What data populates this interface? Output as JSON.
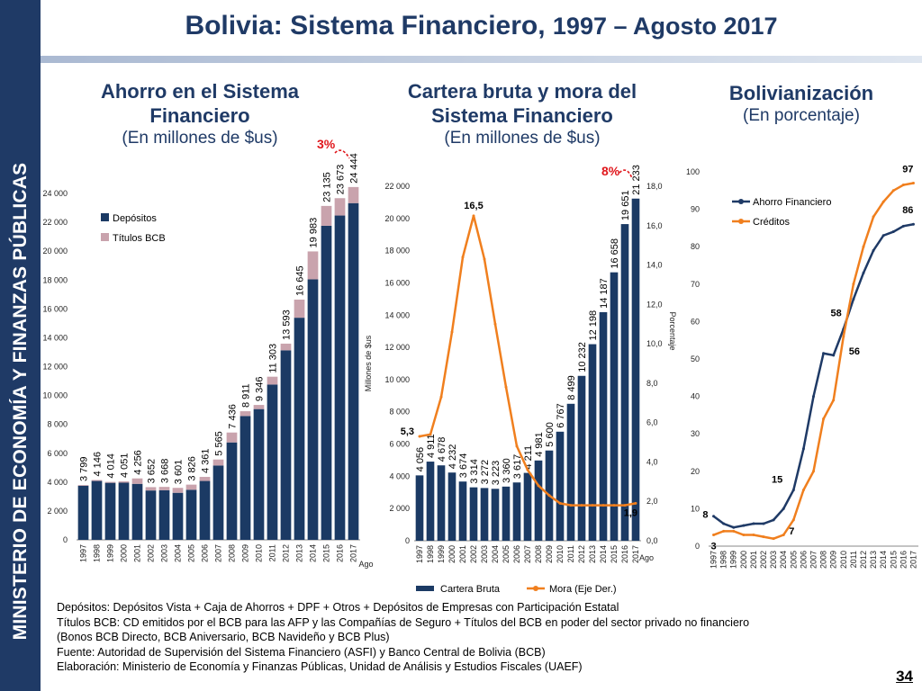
{
  "sidebar": {
    "text": "MINISTERIO DE ECONOMÍA Y FINANZAS PÚBLICAS"
  },
  "title": {
    "main": "Bolivia: Sistema Financiero, ",
    "years": "1997 – Agosto 2017"
  },
  "panels": [
    {
      "title": "Ahorro en el Sistema Financiero",
      "subtitle": "(En millones de $us)"
    },
    {
      "title": "Cartera bruta y mora del Sistema Financiero",
      "subtitle": "(En millones de $us)"
    },
    {
      "title": "Bolivianización",
      "subtitle": "(En porcentaje)"
    }
  ],
  "notes": [
    "Depósitos: Depósitos Vista + Caja de  Ahorros + DPF + Otros + Depósitos de Empresas con Participación Estatal",
    "Títulos BCB: CD emitidos por el BCB para las AFP y las Compañías de Seguro + Títulos del BCB en poder del sector privado no financiero",
    "(Bonos BCB Directo, BCB Aniversario, BCB Navideño y BCB Plus)",
    "Fuente: Autoridad de Supervisión del Sistema Financiero (ASFI) y Banco Central de Bolivia (BCB)",
    "Elaboración: Ministerio de Economía y Finanzas Públicas, Unidad de Análisis y Estudios Fiscales (UAEF)"
  ],
  "page_number": "34",
  "colors": {
    "navy": "#1f3a66",
    "bar": "#1b3a64",
    "titulos": "#c9a3ad",
    "orange": "#f07f1e",
    "red": "#e0161b"
  },
  "chart_data": [
    {
      "type": "bar",
      "stacked": true,
      "categories": [
        "1997",
        "1998",
        "1999",
        "2000",
        "2001",
        "2002",
        "2003",
        "2004",
        "2005",
        "2006",
        "2007",
        "2008",
        "2009",
        "2010",
        "2011",
        "2012",
        "2013",
        "2014",
        "2015",
        "2016",
        "2017"
      ],
      "last_category_note": "Ago",
      "ylim": [
        0,
        24000
      ],
      "yticks": [
        "0",
        "2 000",
        "4 000",
        "6 000",
        "8 000",
        "10 000",
        "12 000",
        "14 000",
        "16 000",
        "18 000",
        "20 000",
        "22 000",
        "24 000"
      ],
      "series": [
        {
          "name": "Depósitos",
          "color": "#1b3a64",
          "values": [
            3750,
            4080,
            3950,
            3960,
            3880,
            3420,
            3440,
            3260,
            3470,
            4080,
            5150,
            6750,
            8580,
            9060,
            10760,
            13130,
            15390,
            18050,
            21760,
            22470,
            23330
          ]
        },
        {
          "name": "Títulos BCB",
          "color": "#c9a3ad",
          "values": [
            49,
            66,
            64,
            91,
            376,
            232,
            228,
            341,
            356,
            281,
            415,
            686,
            331,
            286,
            543,
            463,
            1255,
            1933,
            1375,
            1203,
            1114
          ]
        }
      ],
      "total_labels": [
        "3 799",
        "4 146",
        "4 014",
        "4 051",
        "4 256",
        "3 652",
        "3 668",
        "3 601",
        "3 826",
        "4 361",
        "5 565",
        "7 436",
        "8 911",
        "9 346",
        "11 303",
        "13 593",
        "16 645",
        "19 983",
        "23 135",
        "23 673",
        "24 444"
      ],
      "legend": "top-left",
      "annotation": "3%"
    },
    {
      "type": "bar+line",
      "categories": [
        "1997",
        "1998",
        "1999",
        "2000",
        "2001",
        "2002",
        "2003",
        "2004",
        "2005",
        "2006",
        "2007",
        "2008",
        "2009",
        "2010",
        "2011",
        "2012",
        "2013",
        "2014",
        "2015",
        "2016",
        "2017"
      ],
      "last_category_note": "Ago",
      "ylabel": "Millones de $us",
      "y2label": "Porcentaje",
      "ylim": [
        0,
        22000
      ],
      "yticks": [
        "0",
        "2 000",
        "4 000",
        "6 000",
        "8 000",
        "10 000",
        "12 000",
        "14 000",
        "16 000",
        "18 000",
        "20 000",
        "22 000"
      ],
      "y2lim": [
        0,
        18
      ],
      "y2ticks": [
        "0,0",
        "2,0",
        "4,0",
        "6,0",
        "8,0",
        "10,0",
        "12,0",
        "14,0",
        "16,0",
        "18,0"
      ],
      "series": [
        {
          "name": "Cartera Bruta",
          "type": "bar",
          "color": "#1b3a64",
          "values": [
            4056,
            4911,
            4678,
            4232,
            3674,
            3314,
            3272,
            3223,
            3360,
            3617,
            4211,
            4981,
            5600,
            6767,
            8499,
            10232,
            12198,
            14187,
            16658,
            19651,
            21233
          ],
          "labels": [
            "4 056",
            "4 911",
            "4 678",
            "4 232",
            "3 674",
            "3 314",
            "3 272",
            "3 223",
            "3 360",
            "3 617",
            "4 211",
            "4 981",
            "5 600",
            "6 767",
            "8 499",
            "10 232",
            "12 198",
            "14 187",
            "16 658",
            "19 651",
            "21 233"
          ]
        },
        {
          "name": "Mora (Eje Der.)",
          "type": "line",
          "axis": "right",
          "color": "#f07f1e",
          "values": [
            5.3,
            5.4,
            7.3,
            10.6,
            14.4,
            16.5,
            14.3,
            11.0,
            7.8,
            4.8,
            3.6,
            2.8,
            2.3,
            1.9,
            1.8,
            1.8,
            1.8,
            1.8,
            1.8,
            1.8,
            1.9
          ]
        }
      ],
      "point_labels": [
        {
          "index": 0,
          "text": "5,3"
        },
        {
          "index": 5,
          "text": "16,5"
        },
        {
          "index": 20,
          "text": "1,9"
        }
      ],
      "annotation": "8%",
      "legend": "bottom"
    },
    {
      "type": "line",
      "x": [
        "1997",
        "1998",
        "1999",
        "2000",
        "2001",
        "2002",
        "2003",
        "2004",
        "2005",
        "2006",
        "2007",
        "2008",
        "2009",
        "2010",
        "2011",
        "2012",
        "2013",
        "2014",
        "2015",
        "2016",
        "2017"
      ],
      "ylim": [
        0,
        100
      ],
      "yticks": [
        "0",
        "10",
        "20",
        "30",
        "40",
        "50",
        "60",
        "70",
        "80",
        "90",
        "100"
      ],
      "series": [
        {
          "name": "Ahorro Financiero",
          "color": "#1f3a66",
          "values": [
            8,
            6,
            5,
            5.5,
            6,
            6,
            7,
            10,
            15,
            26,
            40,
            51.5,
            51,
            58,
            66,
            73,
            79,
            83,
            84,
            85.5,
            86
          ]
        },
        {
          "name": "Créditos",
          "color": "#f07f1e",
          "values": [
            3,
            4,
            4,
            3,
            3,
            2.5,
            2,
            3,
            7,
            15,
            20,
            34,
            39,
            56,
            70,
            80,
            88,
            92,
            95,
            96.5,
            97
          ]
        }
      ],
      "point_labels": [
        {
          "series": 0,
          "index": 0,
          "text": "8"
        },
        {
          "series": 0,
          "index": 8,
          "text": "15"
        },
        {
          "series": 0,
          "index": 13,
          "text": "58"
        },
        {
          "series": 0,
          "index": 20,
          "text": "86"
        },
        {
          "series": 1,
          "index": 0,
          "text": "3"
        },
        {
          "series": 1,
          "index": 8,
          "text": "7"
        },
        {
          "series": 1,
          "index": 13,
          "text": "56"
        },
        {
          "series": 1,
          "index": 20,
          "text": "97"
        }
      ],
      "legend": "top-right"
    }
  ]
}
